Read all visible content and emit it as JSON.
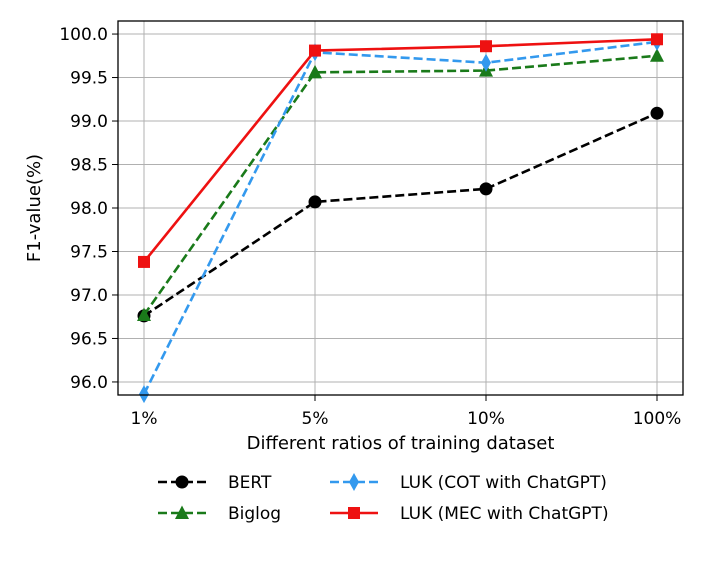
{
  "chart_data": {
    "type": "line",
    "categories": [
      "1%",
      "5%",
      "10%",
      "100%"
    ],
    "xlabel": "Different ratios of training dataset",
    "ylabel": "F1-value(%)",
    "ylim": [
      95.85,
      100.15
    ],
    "yticks": [
      96.0,
      96.5,
      97.0,
      97.5,
      98.0,
      98.5,
      99.0,
      99.5,
      100.0
    ],
    "ytick_labels": [
      "96.0",
      "96.5",
      "97.0",
      "97.5",
      "98.0",
      "98.5",
      "99.0",
      "99.5",
      "100.0"
    ],
    "grid": true,
    "legend_position": "bottom, below plot, two columns",
    "series": [
      {
        "name": "BERT",
        "values": [
          96.76,
          98.07,
          98.22,
          99.09
        ],
        "color": "#000000",
        "linestyle": "dashed",
        "marker": "circle"
      },
      {
        "name": "Biglog",
        "values": [
          96.77,
          99.56,
          99.58,
          99.75
        ],
        "color": "#1a7a1a",
        "linestyle": "dashed",
        "marker": "triangle"
      },
      {
        "name": "LUK (COT with ChatGPT)",
        "values": [
          95.86,
          99.79,
          99.67,
          99.91
        ],
        "color": "#3399ee",
        "linestyle": "dashed",
        "marker": "diamond"
      },
      {
        "name": "LUK (MEC with ChatGPT)",
        "values": [
          97.38,
          99.81,
          99.86,
          99.94
        ],
        "color": "#ee1111",
        "linestyle": "solid",
        "marker": "square"
      }
    ]
  }
}
